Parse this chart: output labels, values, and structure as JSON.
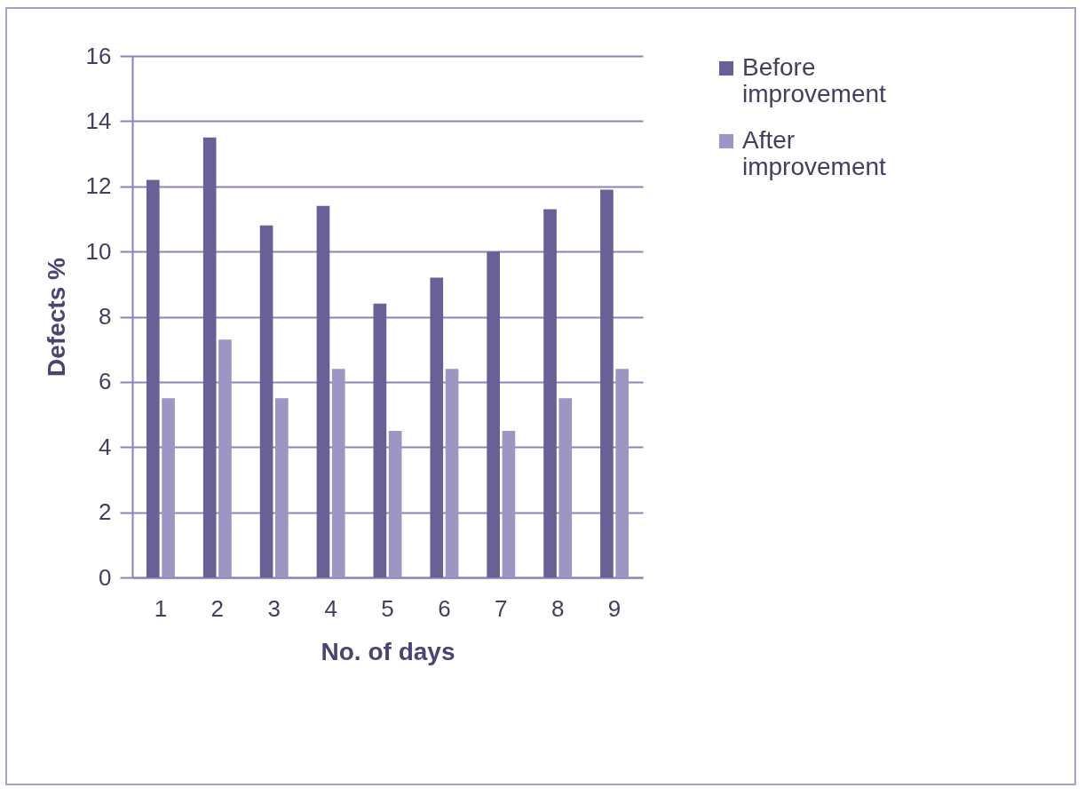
{
  "chart_data": {
    "type": "bar",
    "xlabel": "No. of days",
    "ylabel": "Defects %",
    "categories": [
      "1",
      "2",
      "3",
      "4",
      "5",
      "6",
      "7",
      "8",
      "9"
    ],
    "series": [
      {
        "name": "Before improvement",
        "color": "#6a6096",
        "values": [
          12.2,
          13.5,
          10.8,
          11.4,
          8.4,
          9.2,
          10.0,
          11.3,
          11.9
        ]
      },
      {
        "name": "After improvement",
        "color": "#9d95c2",
        "values": [
          5.5,
          7.3,
          5.5,
          6.4,
          4.5,
          6.4,
          4.5,
          5.5,
          6.4
        ]
      }
    ],
    "ylim": [
      0,
      16
    ],
    "yticks": [
      0,
      2,
      4,
      6,
      8,
      10,
      12,
      14,
      16
    ],
    "grid": "y",
    "legend": "right"
  }
}
